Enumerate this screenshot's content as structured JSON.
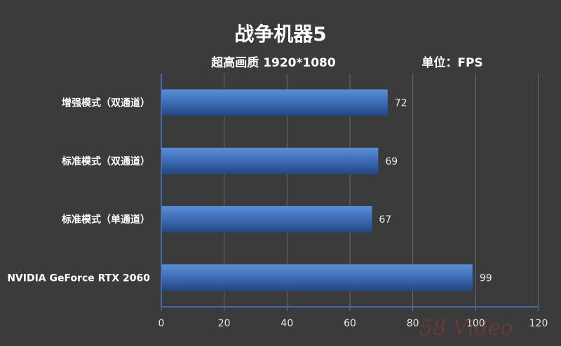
{
  "chart_data": {
    "type": "bar",
    "orientation": "horizontal",
    "title": "战争机器5",
    "subtitle": "超高画质 1920*1080",
    "unit_label": "单位：FPS",
    "categories": [
      "增强模式（双通道）",
      "标准模式（双通道）",
      "标准模式（单通道）",
      "NVIDIA GeForce RTX 2060"
    ],
    "values": [
      72,
      69,
      67,
      99
    ],
    "xlim": [
      0,
      120
    ],
    "xticks": [
      0,
      20,
      40,
      60,
      80,
      100,
      120
    ],
    "grid": true,
    "legend": "none",
    "bar_color": "#4472c4"
  },
  "watermark": "58 Video"
}
